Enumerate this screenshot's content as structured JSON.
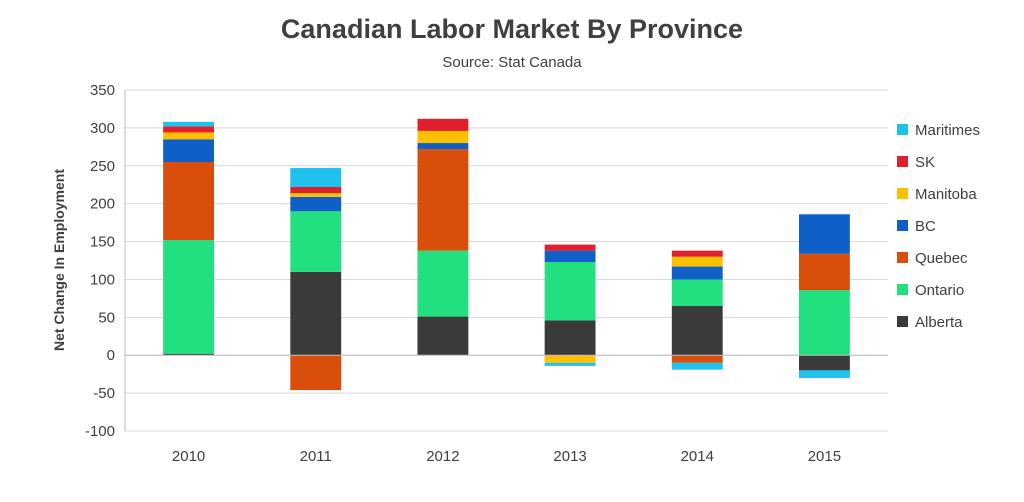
{
  "chart_data": {
    "type": "bar",
    "stacked": true,
    "title": "Canadian Labor Market By Province",
    "subtitle": "Source: Stat Canada",
    "ylabel": "Net Change In Employment",
    "xlabel": "",
    "ylim": [
      -100,
      350
    ],
    "yticks": [
      350,
      300,
      250,
      200,
      150,
      100,
      50,
      0,
      -50,
      -100
    ],
    "grid": true,
    "legend": "right",
    "categories": [
      "2010",
      "2011",
      "2012",
      "2013",
      "2014",
      "2015"
    ],
    "series": [
      {
        "name": "Alberta",
        "color": "#3a3a3a",
        "values": [
          2,
          110,
          51,
          46,
          65,
          -20
        ]
      },
      {
        "name": "Ontario",
        "color": "#22e07f",
        "values": [
          150,
          80,
          87,
          77,
          35,
          86
        ]
      },
      {
        "name": "Quebec",
        "color": "#d94e0a",
        "values": [
          103,
          -46,
          134,
          0,
          -10,
          48
        ]
      },
      {
        "name": "BC",
        "color": "#0f5fc8",
        "values": [
          30,
          19,
          8,
          15,
          17,
          52
        ]
      },
      {
        "name": "Manitoba",
        "color": "#ffc000",
        "values": [
          9,
          5,
          16,
          -10,
          13,
          0
        ]
      },
      {
        "name": "SK",
        "color": "#e0202c",
        "values": [
          8,
          8,
          16,
          8,
          8,
          0
        ]
      },
      {
        "name": "Maritimes",
        "color": "#1fc2ec",
        "values": [
          6,
          25,
          0,
          -4,
          -9,
          -10
        ]
      }
    ]
  }
}
